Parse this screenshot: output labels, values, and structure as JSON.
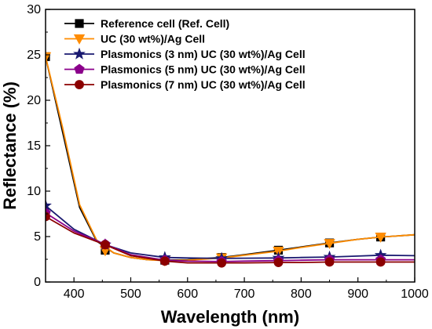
{
  "chart_data": {
    "type": "line",
    "xlabel": "Wavelength (nm)",
    "ylabel": "Reflectance (%)",
    "xlim": [
      350,
      1000
    ],
    "ylim": [
      0,
      30
    ],
    "xticks": [
      400,
      500,
      600,
      700,
      800,
      900,
      1000
    ],
    "yticks": [
      0,
      5,
      10,
      15,
      20,
      25,
      30
    ],
    "grid": false,
    "legend_position": "top-left",
    "series": [
      {
        "name": "Reference cell (Ref. Cell)",
        "color": "#000000",
        "marker": "square",
        "x": [
          350,
          380,
          410,
          440,
          470,
          500,
          530,
          560,
          600,
          660,
          700,
          760,
          800,
          850,
          900,
          940,
          1000
        ],
        "y": [
          24.8,
          16.5,
          8.2,
          4.5,
          3.2,
          2.7,
          2.45,
          2.4,
          2.45,
          2.7,
          3.0,
          3.5,
          3.85,
          4.3,
          4.7,
          4.95,
          5.2
        ],
        "markers_x": [
          350,
          455,
          560,
          660,
          760,
          850,
          940
        ],
        "markers_y": [
          24.8,
          3.5,
          2.4,
          2.7,
          3.5,
          4.3,
          4.95
        ]
      },
      {
        "name": "UC (30 wt%)/Ag Cell",
        "color": "#FF8C00",
        "marker": "triangle-down",
        "x": [
          350,
          380,
          410,
          440,
          470,
          500,
          530,
          560,
          600,
          660,
          700,
          760,
          800,
          850,
          900,
          940,
          1000
        ],
        "y": [
          24.8,
          17.0,
          8.5,
          4.6,
          3.2,
          2.7,
          2.45,
          2.35,
          2.4,
          2.65,
          2.95,
          3.4,
          3.8,
          4.25,
          4.7,
          4.95,
          5.2
        ],
        "markers_x": [
          350,
          455,
          560,
          660,
          760,
          850,
          940
        ],
        "markers_y": [
          24.8,
          3.45,
          2.35,
          2.65,
          3.4,
          4.25,
          4.95
        ]
      },
      {
        "name": "Plasmonics (3 nm) UC (30 wt%)/Ag Cell",
        "color": "#191970",
        "marker": "star",
        "x": [
          350,
          400,
          455,
          500,
          560,
          600,
          660,
          700,
          760,
          800,
          850,
          900,
          940,
          1000
        ],
        "y": [
          8.4,
          5.8,
          4.1,
          3.2,
          2.7,
          2.65,
          2.6,
          2.62,
          2.65,
          2.7,
          2.75,
          2.85,
          2.95,
          2.9
        ],
        "markers_x": [
          350,
          455,
          560,
          660,
          760,
          850,
          940
        ],
        "markers_y": [
          8.4,
          4.1,
          2.7,
          2.6,
          2.65,
          2.75,
          2.95
        ]
      },
      {
        "name": "Plasmonics (5 nm) UC (30 wt%)/Ag Cell",
        "color": "#8B008B",
        "marker": "pentagon",
        "x": [
          350,
          400,
          455,
          500,
          560,
          600,
          660,
          700,
          760,
          800,
          850,
          900,
          940,
          1000
        ],
        "y": [
          7.6,
          5.6,
          4.15,
          3.0,
          2.4,
          2.3,
          2.25,
          2.3,
          2.35,
          2.4,
          2.45,
          2.45,
          2.45,
          2.45
        ],
        "markers_x": [
          350,
          455,
          560,
          660,
          760,
          850,
          940
        ],
        "markers_y": [
          7.6,
          4.15,
          2.4,
          2.25,
          2.35,
          2.45,
          2.45
        ]
      },
      {
        "name": "Plasmonics (7 nm) UC (30 wt%)/Ag Cell",
        "color": "#8B0000",
        "marker": "circle",
        "x": [
          350,
          400,
          455,
          500,
          560,
          600,
          660,
          700,
          760,
          800,
          850,
          900,
          940,
          1000
        ],
        "y": [
          7.2,
          5.4,
          4.1,
          2.9,
          2.3,
          2.1,
          2.1,
          2.1,
          2.15,
          2.15,
          2.2,
          2.2,
          2.2,
          2.2
        ],
        "markers_x": [
          350,
          455,
          560,
          660,
          760,
          850,
          940
        ],
        "markers_y": [
          7.2,
          4.1,
          2.3,
          2.1,
          2.15,
          2.2,
          2.2
        ]
      }
    ]
  }
}
